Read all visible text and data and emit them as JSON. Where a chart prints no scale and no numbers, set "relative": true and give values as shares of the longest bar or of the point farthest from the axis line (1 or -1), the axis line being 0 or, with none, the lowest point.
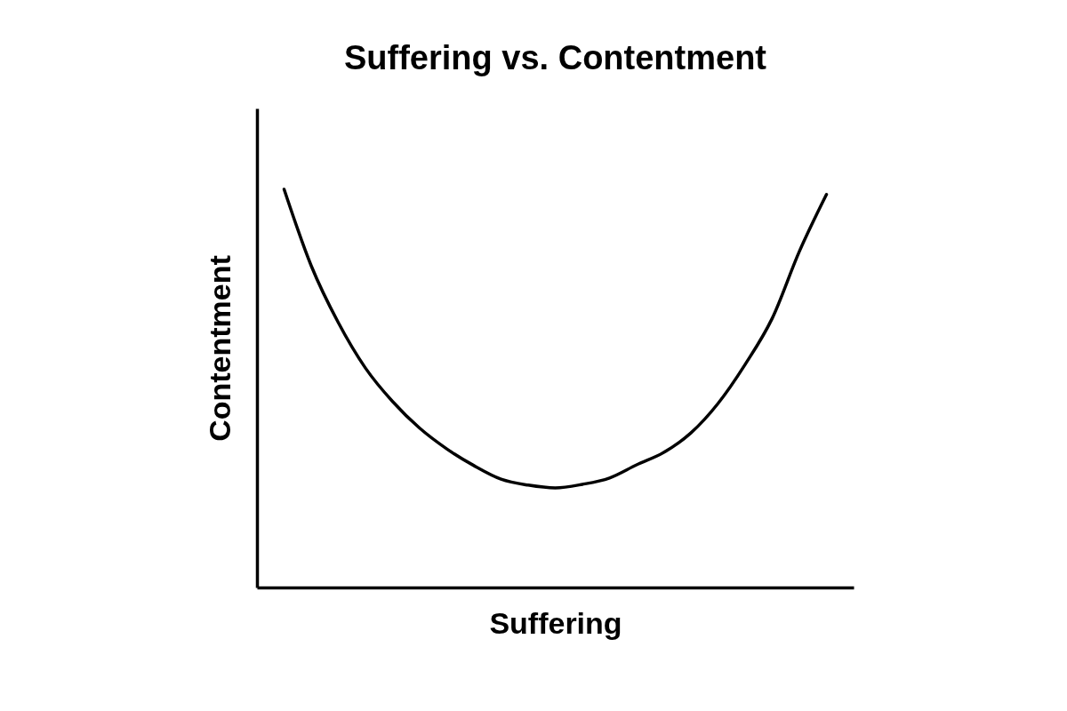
{
  "chart_data": {
    "type": "line",
    "title": "Suffering vs. Contentment",
    "xlabel": "Suffering",
    "ylabel": "Contentment",
    "relative": true,
    "color": "#000000",
    "categories": [
      null,
      null,
      null,
      null,
      null,
      null,
      null,
      null,
      null,
      null,
      null,
      null,
      null,
      null,
      null,
      null,
      null,
      null,
      null,
      null,
      null
    ],
    "values": [
      1,
      0.808,
      0.665,
      0.551,
      0.467,
      0.4,
      0.348,
      0.306,
      0.272,
      0.257,
      0.25,
      0.259,
      0.275,
      0.308,
      0.339,
      0.388,
      0.462,
      0.56,
      0.676,
      0.844,
      0.987
    ]
  }
}
